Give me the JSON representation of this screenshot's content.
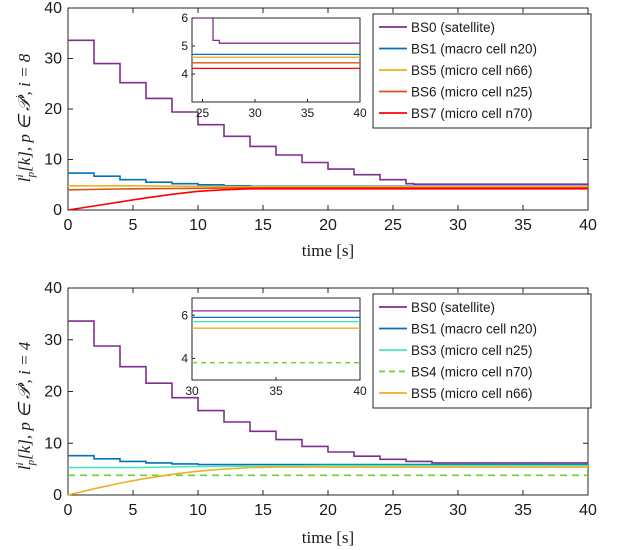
{
  "chart_data": [
    {
      "type": "line",
      "xlabel": "time [s]",
      "ylabel": "l_p^i[k],  p ∈ P^i,  i = 8",
      "xlim": [
        0,
        40
      ],
      "ylim": [
        0,
        40
      ],
      "xticks": [
        "0",
        "5",
        "10",
        "15",
        "20",
        "25",
        "30",
        "35",
        "40"
      ],
      "yticks": [
        "0",
        "10",
        "20",
        "30",
        "40"
      ],
      "legend_position": "top-right",
      "series": [
        {
          "name": "BS0 (satellite)",
          "color": "#7e2f8e",
          "style": "solid",
          "x": [
            0,
            2,
            4,
            6,
            8,
            10,
            12,
            14,
            16,
            18,
            20,
            22,
            24,
            26,
            26.6,
            40
          ],
          "y": [
            33.6,
            29.0,
            25.2,
            22.1,
            19.4,
            16.9,
            14.6,
            12.6,
            10.9,
            9.4,
            8.1,
            7.0,
            6.0,
            5.2,
            5.1,
            5.1
          ]
        },
        {
          "name": "BS1 (macro cell n20)",
          "color": "#0072bd",
          "style": "solid",
          "x": [
            0,
            2,
            4,
            6,
            8,
            10,
            12,
            14,
            20,
            40
          ],
          "y": [
            7.3,
            6.7,
            6.0,
            5.5,
            5.2,
            5.0,
            4.8,
            4.7,
            4.7,
            4.6
          ]
        },
        {
          "name": "BS5 (micro cell n66)",
          "color": "#edb120",
          "style": "solid",
          "x": [
            0,
            5,
            10,
            15,
            40
          ],
          "y": [
            4.8,
            4.8,
            4.7,
            4.6,
            4.6
          ]
        },
        {
          "name": "BS6 (micro cell n25)",
          "color": "#d95319",
          "style": "solid",
          "x": [
            0,
            5,
            10,
            15,
            40
          ],
          "y": [
            4.0,
            4.2,
            4.3,
            4.4,
            4.4
          ]
        },
        {
          "name": "BS7 (micro cell n70)",
          "color": "#ff0000",
          "style": "solid",
          "x": [
            0,
            2,
            4,
            6,
            8,
            10,
            12,
            14,
            16,
            40
          ],
          "y": [
            0.0,
            0.8,
            1.6,
            2.4,
            3.1,
            3.7,
            4.0,
            4.2,
            4.2,
            4.2
          ]
        }
      ],
      "inset": {
        "xlim": [
          24,
          40
        ],
        "ylim": [
          3,
          6
        ],
        "xticks": [
          "25",
          "30",
          "35",
          "40"
        ],
        "yticks": [
          "4",
          "5",
          "6"
        ]
      }
    },
    {
      "type": "line",
      "xlabel": "time [s]",
      "ylabel": "l_p^i[k],  p ∈ P^i,  i = 4",
      "xlim": [
        0,
        40
      ],
      "ylim": [
        0,
        40
      ],
      "xticks": [
        "0",
        "5",
        "10",
        "15",
        "20",
        "25",
        "30",
        "35",
        "40"
      ],
      "yticks": [
        "0",
        "10",
        "20",
        "30",
        "40"
      ],
      "legend_position": "top-right",
      "series": [
        {
          "name": "BS0 (satellite)",
          "color": "#7e2f8e",
          "style": "solid",
          "x": [
            0,
            2,
            4,
            6,
            8,
            10,
            12,
            14,
            16,
            18,
            20,
            22,
            24,
            26,
            28,
            30,
            30.3,
            40
          ],
          "y": [
            33.6,
            28.8,
            24.8,
            21.6,
            18.8,
            16.3,
            14.1,
            12.3,
            10.7,
            9.4,
            8.3,
            7.5,
            6.9,
            6.5,
            6.2,
            6.2,
            6.2,
            6.2
          ]
        },
        {
          "name": "BS1 (macro cell n20)",
          "color": "#0072bd",
          "style": "solid",
          "x": [
            0,
            2,
            4,
            6,
            8,
            10,
            15,
            20,
            40
          ],
          "y": [
            7.6,
            7.0,
            6.5,
            6.2,
            6.0,
            5.9,
            5.9,
            5.9,
            5.9
          ]
        },
        {
          "name": "BS3 (micro cell n25)",
          "color": "#4ee6b8",
          "style": "solid",
          "x": [
            0,
            5,
            10,
            15,
            20,
            40
          ],
          "y": [
            5.3,
            5.3,
            5.5,
            5.6,
            5.7,
            5.7
          ]
        },
        {
          "name": "BS4 (micro cell n70)",
          "color": "#6cd22a",
          "style": "dashed",
          "x": [
            0,
            40
          ],
          "y": [
            3.8,
            3.8
          ]
        },
        {
          "name": "BS5 (micro cell n66)",
          "color": "#edb120",
          "style": "solid",
          "x": [
            0,
            2,
            4,
            6,
            8,
            10,
            12,
            14,
            16,
            40
          ],
          "y": [
            0.0,
            1.2,
            2.3,
            3.2,
            4.0,
            4.6,
            5.0,
            5.3,
            5.4,
            5.4
          ]
        }
      ],
      "inset": {
        "xlim": [
          30,
          40
        ],
        "ylim": [
          3,
          6.8
        ],
        "xticks": [
          "30",
          "35",
          "40"
        ],
        "yticks": [
          "4",
          "6"
        ]
      }
    }
  ]
}
